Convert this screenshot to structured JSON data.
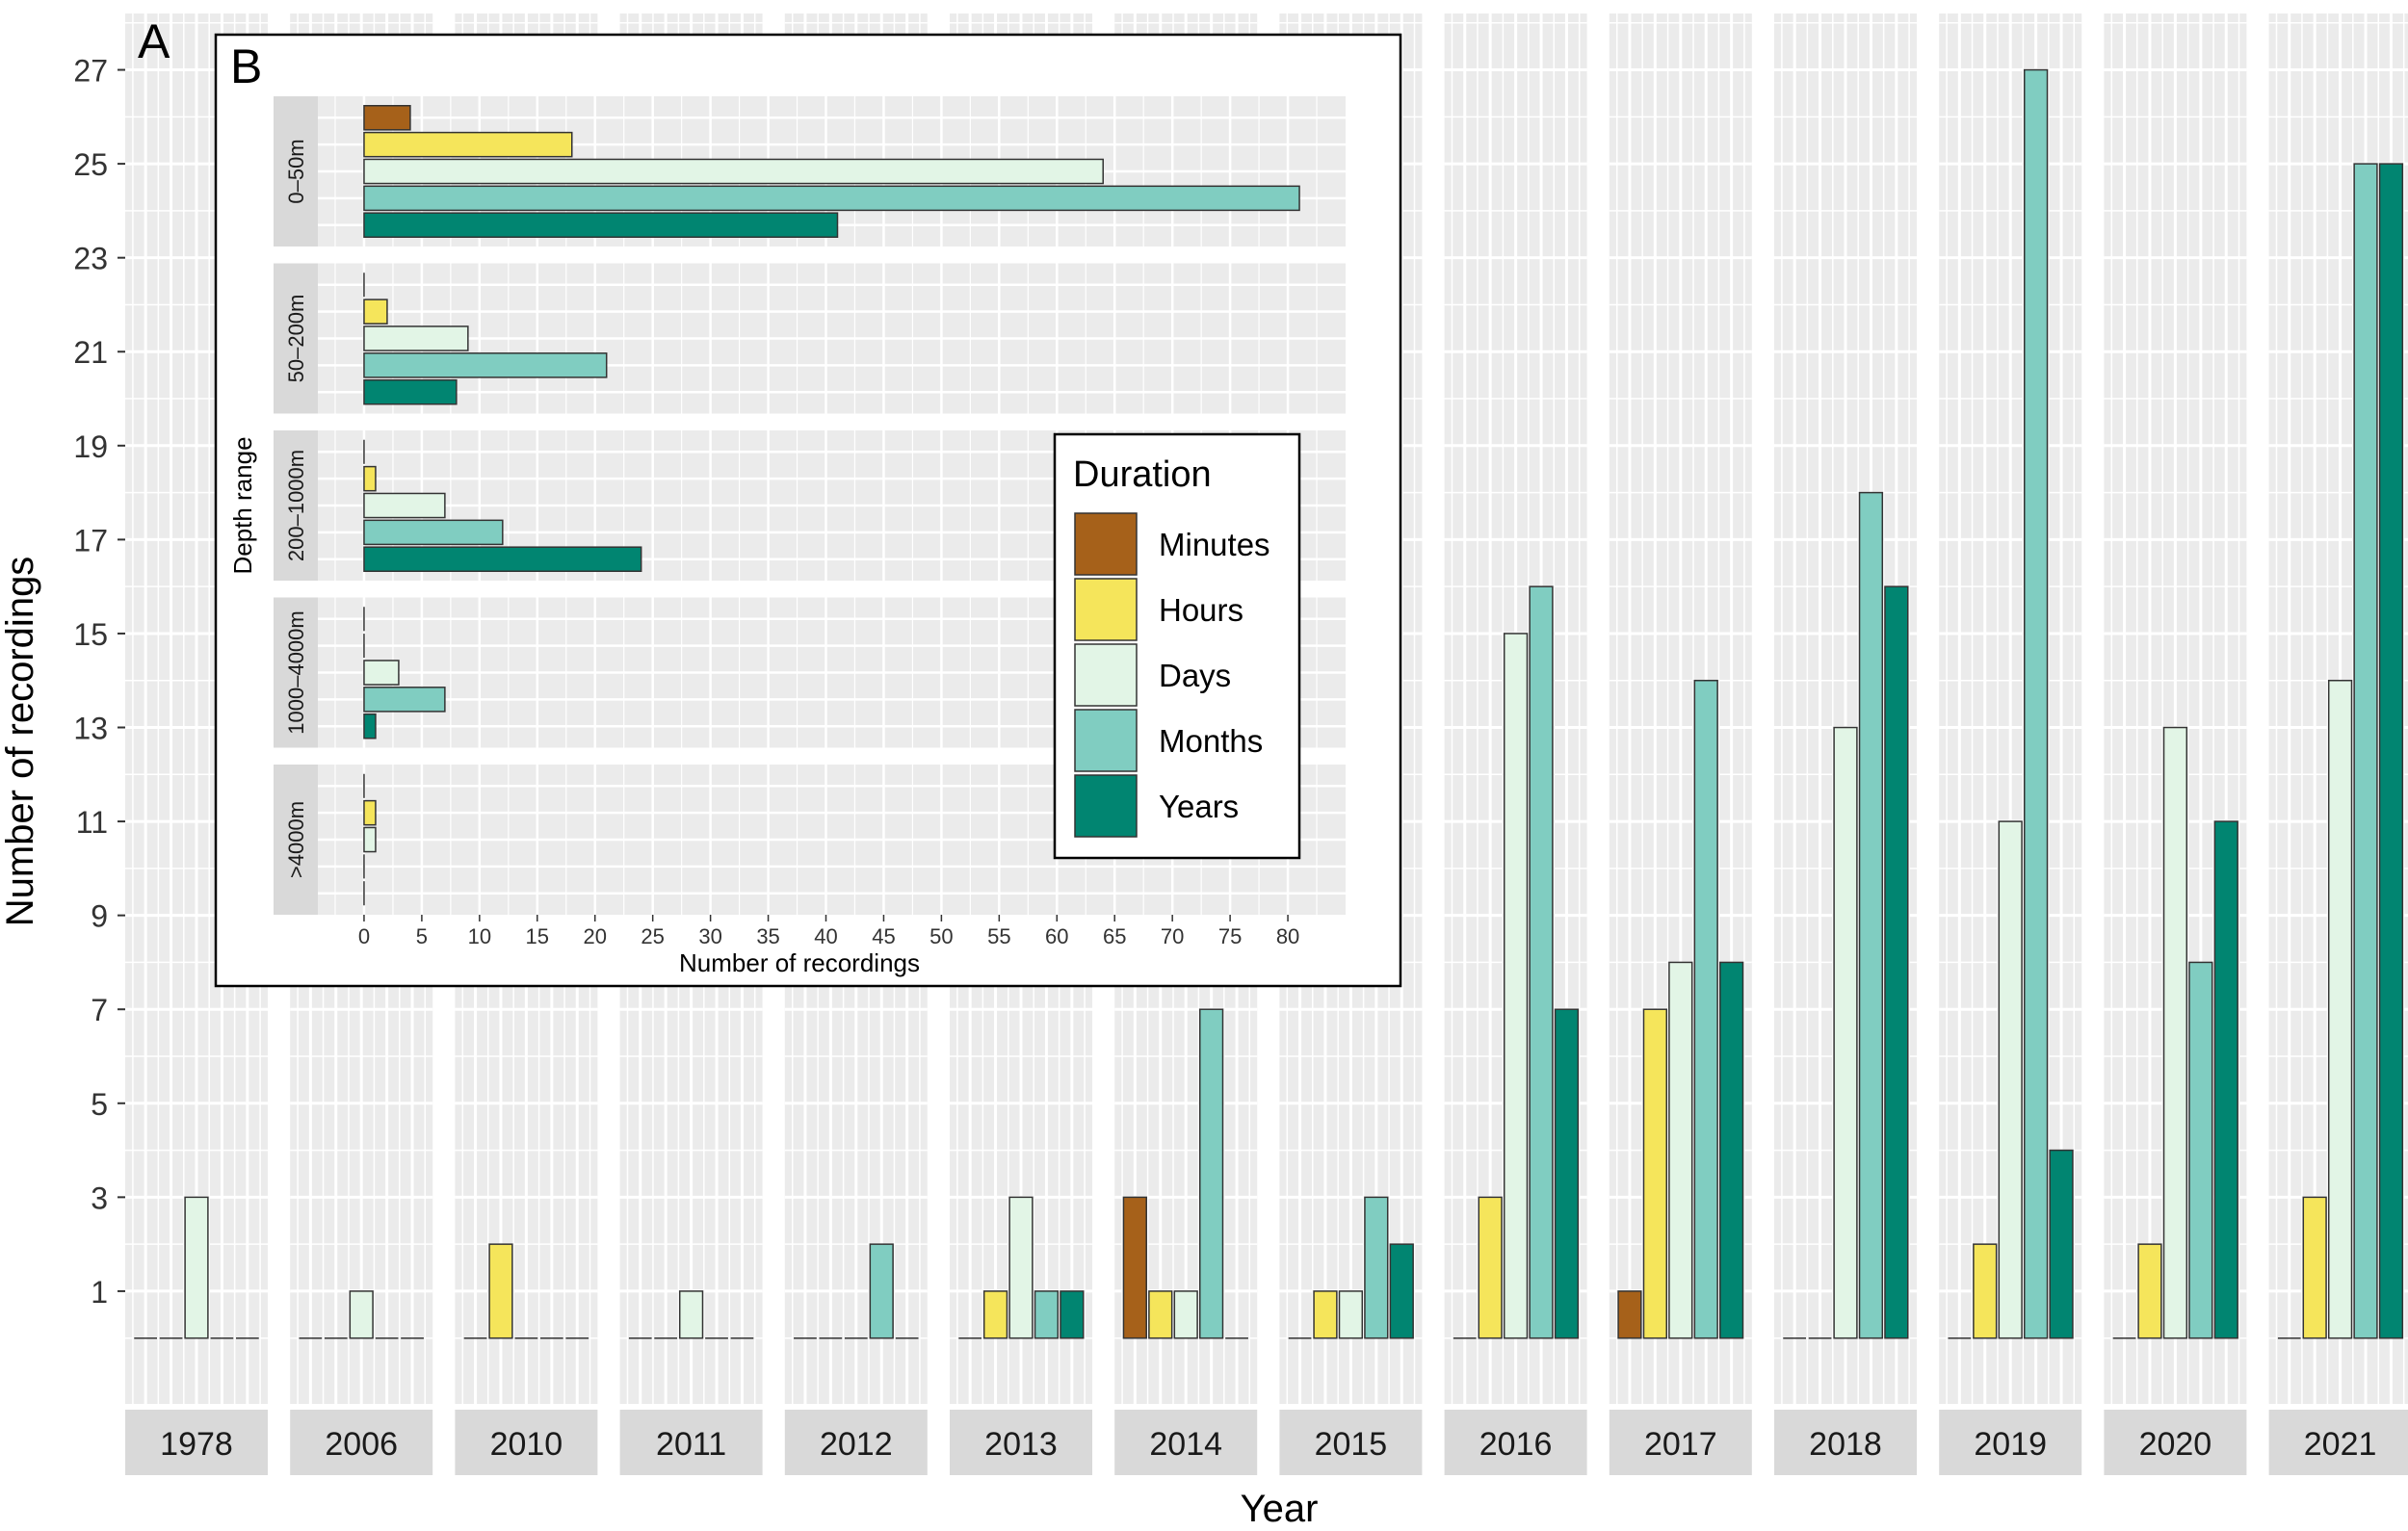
{
  "colors": {
    "Minutes": "#a6611a",
    "Hours": "#f5e55b",
    "Days": "#e2f5e6",
    "Months": "#80cdc1",
    "Years": "#018571",
    "panel_bg": "#ebebeb",
    "strip_bg": "#d9d9d9",
    "grid": "#ffffff"
  },
  "chart_data": [
    {
      "panel": "A",
      "type": "bar",
      "xlabel": "Year",
      "ylabel": "Number of recordings",
      "yticks": [
        1,
        3,
        5,
        7,
        9,
        11,
        13,
        15,
        17,
        19,
        21,
        23,
        25,
        27
      ],
      "ylim": [
        -1.4,
        28.2
      ],
      "categories": [
        "Minutes",
        "Hours",
        "Days",
        "Months",
        "Years"
      ],
      "facets": [
        {
          "year": "1978",
          "values": [
            0,
            0,
            3,
            0,
            0
          ]
        },
        {
          "year": "2006",
          "values": [
            0,
            0,
            1,
            0,
            0
          ]
        },
        {
          "year": "2010",
          "values": [
            0,
            2,
            0,
            0,
            0
          ]
        },
        {
          "year": "2011",
          "values": [
            0,
            0,
            1,
            0,
            0
          ]
        },
        {
          "year": "2012",
          "values": [
            0,
            0,
            0,
            2,
            0
          ]
        },
        {
          "year": "2013",
          "values": [
            0,
            1,
            3,
            1,
            1
          ]
        },
        {
          "year": "2014",
          "values": [
            3,
            1,
            1,
            7,
            0
          ]
        },
        {
          "year": "2015",
          "values": [
            0,
            1,
            1,
            3,
            2
          ]
        },
        {
          "year": "2016",
          "values": [
            0,
            3,
            15,
            16,
            7
          ]
        },
        {
          "year": "2017",
          "values": [
            1,
            7,
            8,
            14,
            8
          ]
        },
        {
          "year": "2018",
          "values": [
            0,
            0,
            13,
            18,
            16
          ]
        },
        {
          "year": "2019",
          "values": [
            0,
            2,
            11,
            27,
            4
          ]
        },
        {
          "year": "2020",
          "values": [
            0,
            2,
            13,
            8,
            11
          ]
        },
        {
          "year": "2021",
          "values": [
            0,
            3,
            14,
            25,
            25
          ]
        }
      ]
    },
    {
      "panel": "B",
      "type": "bar",
      "orientation": "horizontal",
      "xlabel": "Number of recordings",
      "ylabel": "Depth range",
      "xticks": [
        0,
        5,
        10,
        15,
        20,
        25,
        30,
        35,
        40,
        45,
        50,
        55,
        60,
        65,
        70,
        75,
        80
      ],
      "xlim": [
        -4,
        85
      ],
      "categories": [
        "Minutes",
        "Hours",
        "Days",
        "Months",
        "Years"
      ],
      "facets": [
        {
          "depth": "0–50m",
          "values": [
            4,
            18,
            64,
            81,
            41
          ]
        },
        {
          "depth": "50–200m",
          "values": [
            0,
            2,
            9,
            21,
            8
          ]
        },
        {
          "depth": "200–1000m",
          "values": [
            0,
            1,
            7,
            12,
            24
          ]
        },
        {
          "depth": "1000–4000m",
          "values": [
            0,
            0,
            3,
            7,
            1
          ]
        },
        {
          "depth": ">4000m",
          "values": [
            0,
            1,
            1,
            0,
            0
          ]
        }
      ],
      "legend": {
        "title": "Duration",
        "entries": [
          "Minutes",
          "Hours",
          "Days",
          "Months",
          "Years"
        ],
        "placement": "inside-right"
      }
    }
  ],
  "labels": {
    "panel_a": "A",
    "panel_b": "B"
  }
}
